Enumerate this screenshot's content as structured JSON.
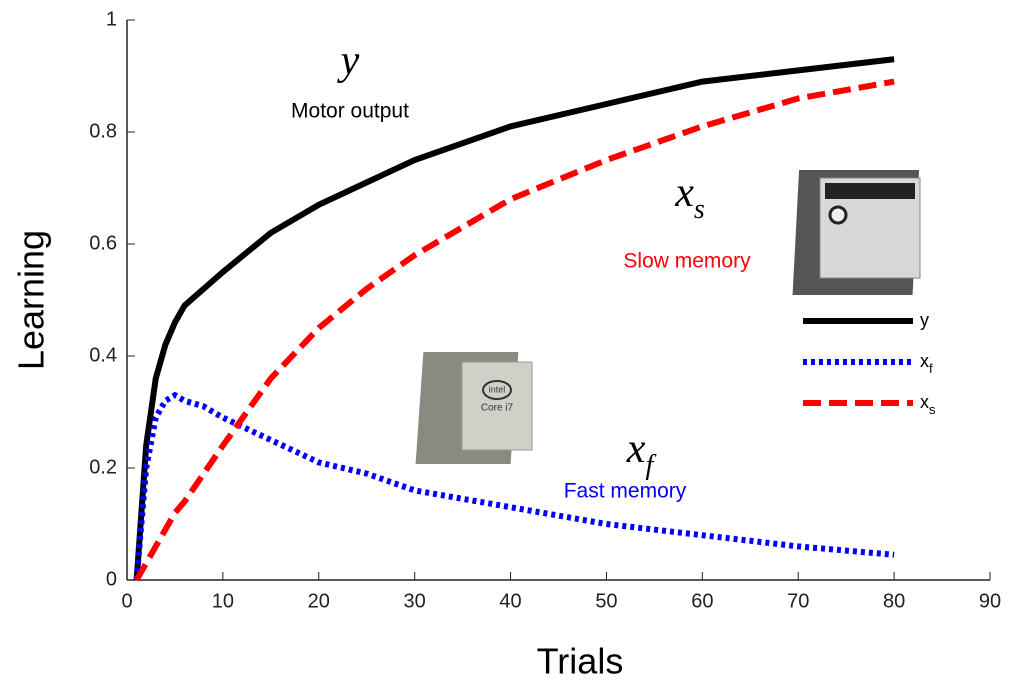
{
  "chart_data": {
    "type": "line",
    "x_label": "Trials",
    "y_label": "Learning",
    "x": [
      1,
      2,
      3,
      4,
      5,
      6,
      8,
      10,
      15,
      20,
      25,
      30,
      40,
      50,
      60,
      70,
      80
    ],
    "series": [
      {
        "name": "y",
        "color": "#000000",
        "style": "solid",
        "values": [
          0,
          0.24,
          0.36,
          0.42,
          0.46,
          0.49,
          0.52,
          0.55,
          0.62,
          0.67,
          0.71,
          0.75,
          0.81,
          0.85,
          0.89,
          0.91,
          0.93
        ]
      },
      {
        "name": "x",
        "subscript": "f",
        "color": "#0000ff",
        "style": "dotted",
        "values": [
          0,
          0.2,
          0.29,
          0.32,
          0.33,
          0.32,
          0.31,
          0.29,
          0.25,
          0.21,
          0.19,
          0.16,
          0.13,
          0.1,
          0.08,
          0.06,
          0.045
        ]
      },
      {
        "name": "x",
        "subscript": "s",
        "color": "#ff0000",
        "style": "dashed",
        "values": [
          0,
          0.03,
          0.06,
          0.09,
          0.12,
          0.14,
          0.19,
          0.24,
          0.36,
          0.45,
          0.52,
          0.58,
          0.68,
          0.75,
          0.81,
          0.86,
          0.89
        ]
      }
    ],
    "xlim": [
      0,
      90
    ],
    "xticks": [
      0,
      10,
      20,
      30,
      40,
      50,
      60,
      70,
      80,
      90
    ],
    "ylim": [
      0,
      1
    ],
    "yticks": [
      0,
      0.2,
      0.4,
      0.6,
      0.8,
      1
    ],
    "grid": false,
    "legend": "right",
    "annotations": [
      {
        "text": "y",
        "label": "Motor output",
        "color": "#000000"
      },
      {
        "text": "x",
        "subscript": "s",
        "label": "Slow memory",
        "color": "#ff0000"
      },
      {
        "text": "x",
        "subscript": "f",
        "label": "Fast memory",
        "color": "#0000ff"
      }
    ]
  }
}
